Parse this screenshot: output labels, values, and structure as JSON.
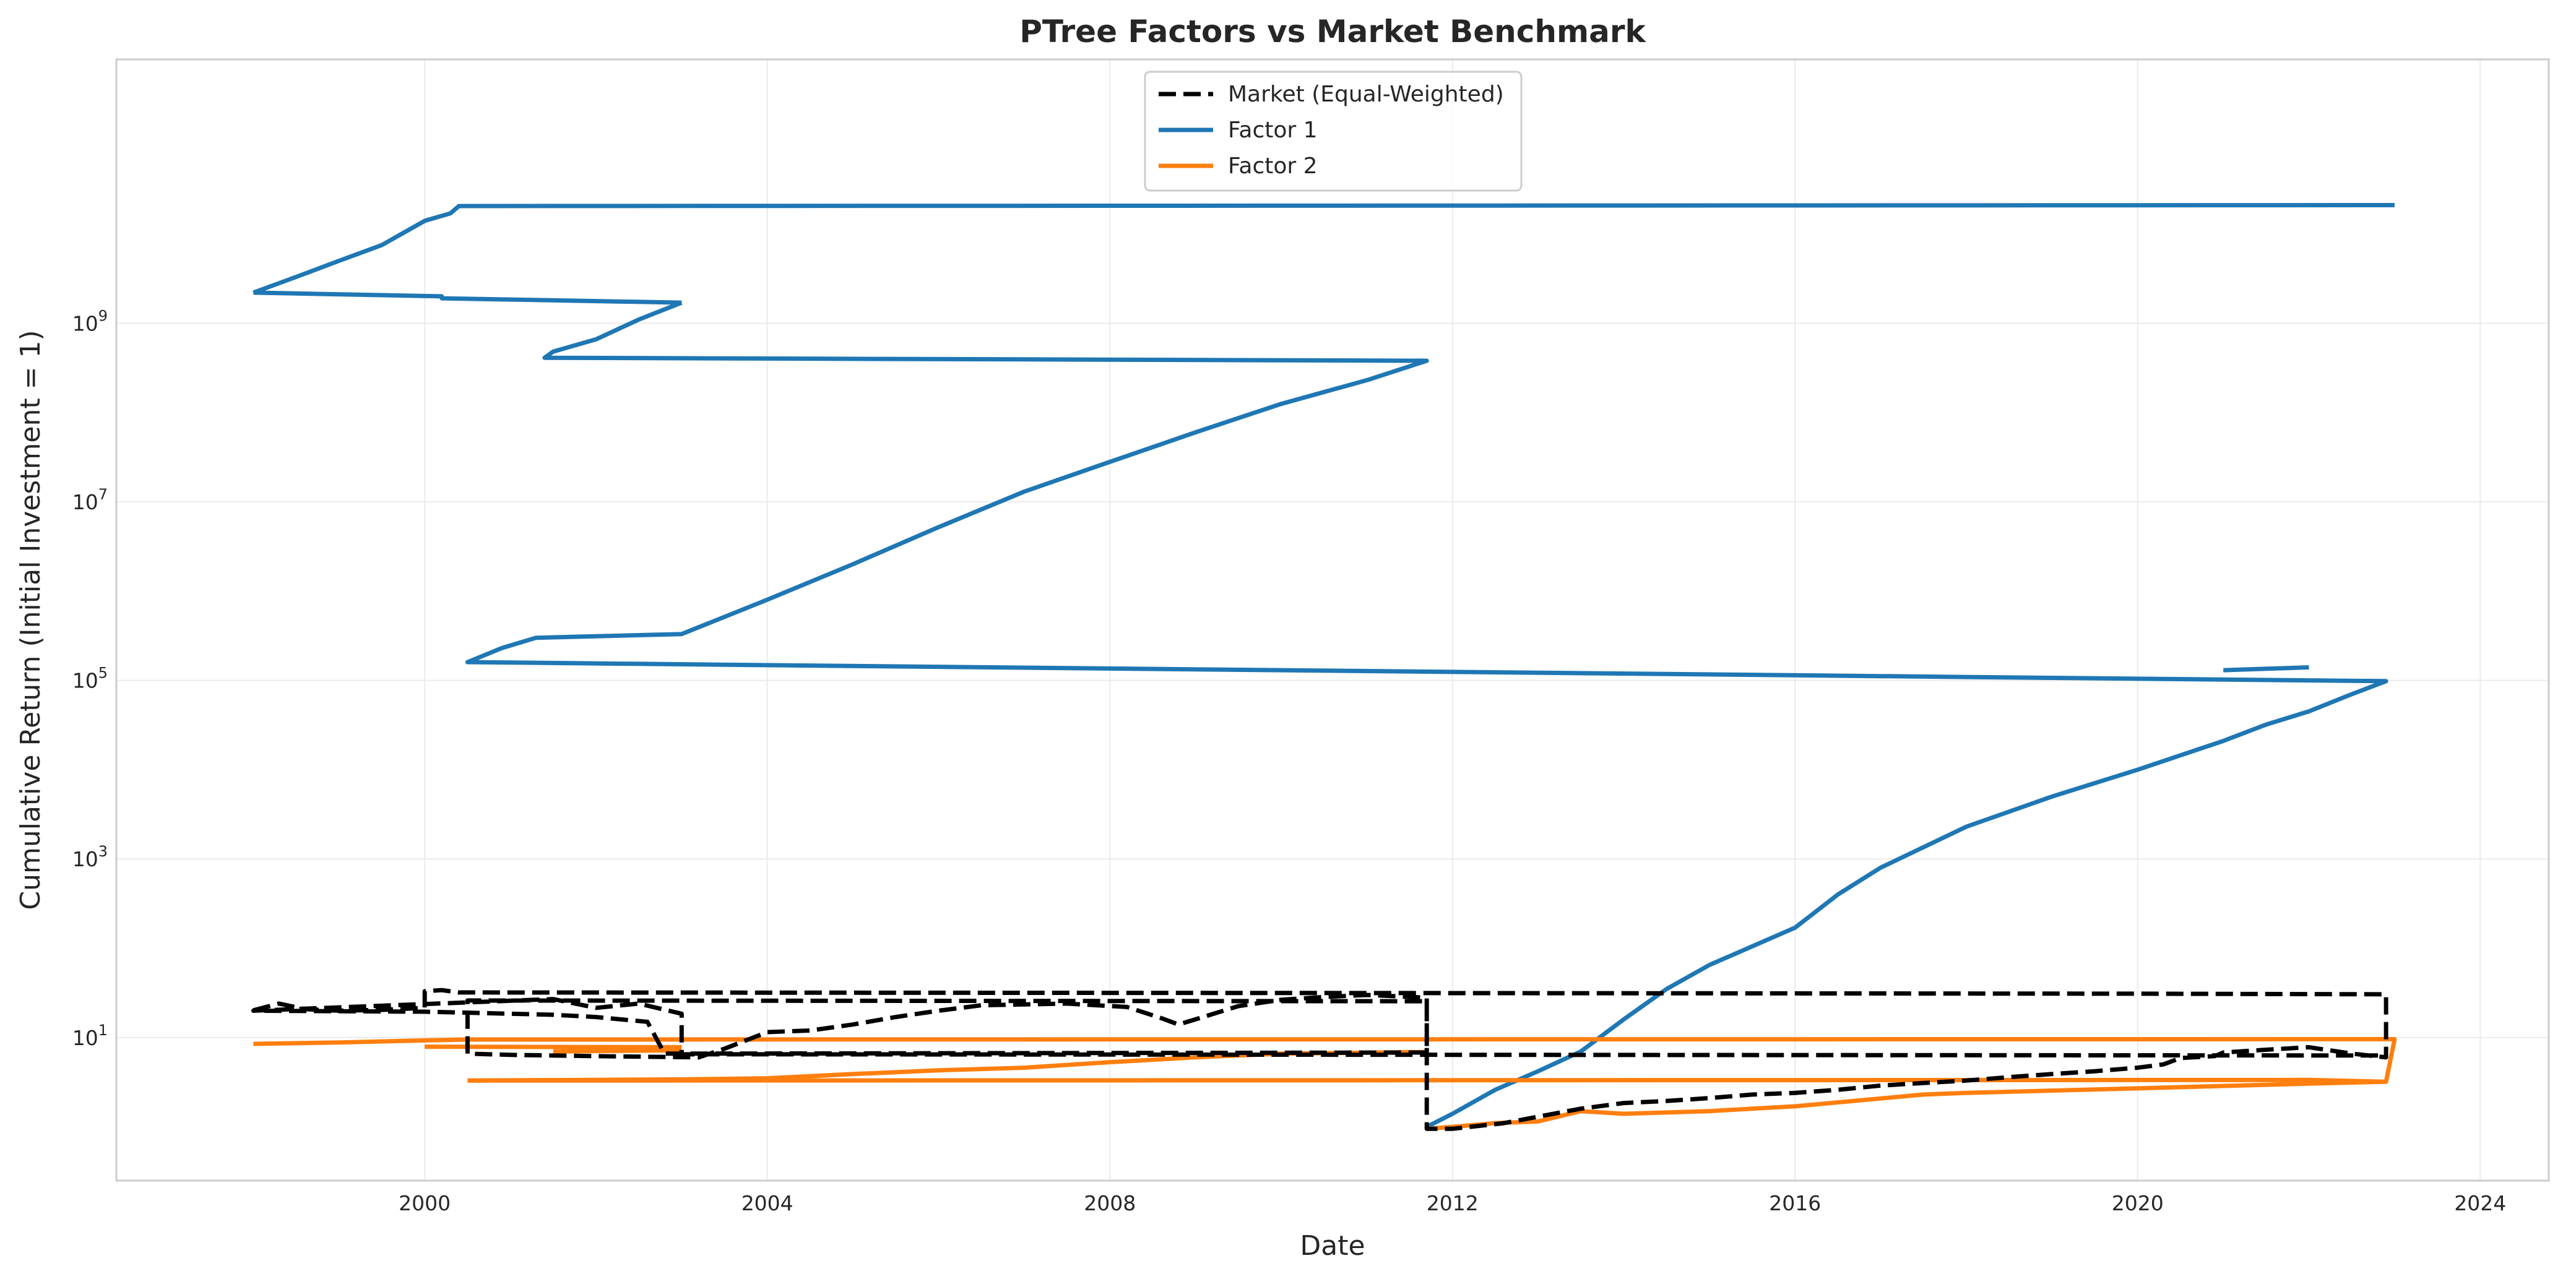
{
  "chart_data": {
    "type": "line",
    "title": "PTree Factors vs Market Benchmark",
    "xlabel": "Date",
    "ylabel": "Cumulative Return (Initial Investment = 1)",
    "yscale": "log",
    "xlim": [
      1996.4,
      2024.8
    ],
    "ylim": [
      0.25,
      900000000000.0
    ],
    "x_ticks": [
      "2000",
      "2004",
      "2008",
      "2012",
      "2016",
      "2020",
      "2024"
    ],
    "y_ticks": [
      {
        "base": "10",
        "exp": "1",
        "value": 10
      },
      {
        "base": "10",
        "exp": "3",
        "value": 1000
      },
      {
        "base": "10",
        "exp": "5",
        "value": 100000
      },
      {
        "base": "10",
        "exp": "7",
        "value": 10000000
      },
      {
        "base": "10",
        "exp": "9",
        "value": 1000000000
      }
    ],
    "grid": true,
    "legend_position": "top-center",
    "series": [
      {
        "name": "Market (Equal-Weighted)",
        "color": "#000000",
        "style": "dashed",
        "points": [
          [
            1998.0,
            20.2
          ],
          [
            1998.3,
            24.0
          ],
          [
            1998.6,
            20.8
          ],
          [
            1999.0,
            20.0
          ],
          [
            1999.5,
            20.4
          ],
          [
            2000.0,
            21.5
          ],
          [
            2000.0,
            33.0
          ],
          [
            2000.2,
            34.0
          ],
          [
            2000.4,
            32.0
          ],
          [
            2011.6,
            31.5
          ],
          [
            2020.0,
            31.0
          ],
          [
            2022.9,
            30.5
          ],
          [
            2022.9,
            6.0
          ],
          [
            2022.5,
            6.6
          ],
          [
            2022.0,
            7.8
          ],
          [
            2021.5,
            7.3
          ],
          [
            2021.0,
            6.8
          ],
          [
            2020.9,
            6.2
          ],
          [
            2020.5,
            5.9
          ],
          [
            2020.3,
            5.0
          ],
          [
            2020.0,
            4.6
          ],
          [
            2019.5,
            4.2
          ],
          [
            2019.0,
            3.9
          ],
          [
            2018.5,
            3.6
          ],
          [
            2018.0,
            3.3
          ],
          [
            2017.5,
            3.1
          ],
          [
            2017.0,
            2.9
          ],
          [
            2016.5,
            2.6
          ],
          [
            2016.0,
            2.4
          ],
          [
            2015.5,
            2.3
          ],
          [
            2015.0,
            2.1
          ],
          [
            2014.5,
            1.95
          ],
          [
            2014.0,
            1.85
          ],
          [
            2013.5,
            1.6
          ],
          [
            2013.0,
            1.3
          ],
          [
            2012.6,
            1.1
          ],
          [
            2012.0,
            0.95
          ],
          [
            2011.7,
            0.95
          ],
          [
            2011.7,
            28.0
          ],
          [
            2011.0,
            30.0
          ],
          [
            2010.5,
            28.5
          ],
          [
            2010.0,
            26.5
          ],
          [
            2009.5,
            22.5
          ],
          [
            2009.0,
            16.0
          ],
          [
            2008.8,
            14.0
          ],
          [
            2008.6,
            16.5
          ],
          [
            2008.2,
            22.0
          ],
          [
            2007.5,
            24.0
          ],
          [
            2006.5,
            23.0
          ],
          [
            2006.0,
            20.0
          ],
          [
            2005.5,
            17.0
          ],
          [
            2005.0,
            14.0
          ],
          [
            2004.5,
            12.0
          ],
          [
            2004.0,
            11.5
          ],
          [
            2003.5,
            7.5
          ],
          [
            2003.2,
            6.0
          ],
          [
            2002.0,
            6.2
          ],
          [
            2001.0,
            6.4
          ],
          [
            2000.5,
            6.6
          ],
          [
            2000.5,
            26.0
          ],
          [
            2011.7,
            25.5
          ],
          [
            2011.7,
            6.8
          ],
          [
            2002.8,
            6.6
          ],
          [
            2002.6,
            15.0
          ],
          [
            2002.0,
            17.0
          ],
          [
            2001.5,
            18.0
          ],
          [
            2001.0,
            18.5
          ],
          [
            2000.5,
            19.0
          ],
          [
            2000.0,
            19.5
          ],
          [
            1998.0,
            20.0
          ],
          [
            2001.5,
            27.0
          ],
          [
            2002.0,
            21.5
          ],
          [
            2002.5,
            24.0
          ],
          [
            2003.0,
            18.5
          ],
          [
            2003.0,
            14.0
          ],
          [
            2003.0,
            6.5
          ],
          [
            2022.9,
            6.3
          ]
        ]
      },
      {
        "name": "Factor 1",
        "color": "#1f77b4",
        "style": "solid",
        "points": [
          [
            2003.0,
            1700000000.0
          ],
          [
            2002.5,
            1100000000.0
          ],
          [
            2002.0,
            660000000.0
          ],
          [
            2001.5,
            480000000.0
          ],
          [
            2001.4,
            410000000.0
          ],
          [
            2011.7,
            380000000.0
          ],
          [
            2011.0,
            230000000.0
          ],
          [
            2010.0,
            125000000.0
          ],
          [
            2009.0,
            60000000.0
          ],
          [
            2008.0,
            28000000.0
          ],
          [
            2007.0,
            13000000.0
          ],
          [
            2006.0,
            5200000.0
          ],
          [
            2005.0,
            2000000.0
          ],
          [
            2004.0,
            800000.0
          ],
          [
            2003.0,
            330000.0
          ],
          [
            2001.3,
            300000.0
          ],
          [
            2000.9,
            230000.0
          ],
          [
            2000.5,
            160000.0
          ],
          [
            2022.9,
            98000.0
          ],
          [
            2022.5,
            70000.0
          ],
          [
            2022.0,
            45000.0
          ],
          [
            2021.5,
            32000.0
          ],
          [
            2021.0,
            21000.0
          ],
          [
            2020.0,
            10000.0
          ],
          [
            2019.0,
            5000.0
          ],
          [
            2018.0,
            2300.0
          ],
          [
            2017.0,
            800.0
          ],
          [
            2016.5,
            400.0
          ],
          [
            2016.0,
            170.0
          ],
          [
            2015.0,
            65.0
          ],
          [
            2014.5,
            35.0
          ],
          [
            2014.0,
            16.0
          ],
          [
            2013.5,
            7.0
          ],
          [
            2013.0,
            4.2
          ],
          [
            2012.5,
            2.6
          ],
          [
            2012.0,
            1.4
          ],
          [
            2011.7,
            1.0
          ]
        ],
        "extra_segments": [
          [
            [
              1998.0,
              2200000000.0
            ],
            [
              2000.2,
              2000000000.0
            ],
            [
              2000.2,
              1900000000.0
            ],
            [
              2003.0,
              1700000000.0
            ]
          ],
          [
            [
              1998.0,
              2200000000.0
            ],
            [
              1998.5,
              3300000000.0
            ],
            [
              1999.0,
              5000000000.0
            ],
            [
              1999.5,
              7500000000.0
            ],
            [
              2000.0,
              14000000000.0
            ],
            [
              2000.3,
              17000000000.0
            ],
            [
              2000.4,
              20500000000.0
            ],
            [
              2023.0,
              21000000000.0
            ]
          ],
          [
            [
              2021.0,
              130000.0
            ],
            [
              2022.0,
              140000.0
            ]
          ]
        ]
      },
      {
        "name": "Factor 2",
        "color": "#ff7f0e",
        "style": "solid",
        "points": [
          [
            1998.0,
            8.5
          ],
          [
            1999.0,
            8.8
          ],
          [
            2000.0,
            9.3
          ],
          [
            2000.5,
            9.5
          ],
          [
            2023.0,
            9.6
          ],
          [
            2022.9,
            3.2
          ],
          [
            2022.0,
            3.05
          ],
          [
            2020.0,
            2.7
          ],
          [
            2018.0,
            2.4
          ],
          [
            2017.5,
            2.3
          ],
          [
            2016.0,
            1.7
          ],
          [
            2015.5,
            1.6
          ],
          [
            2015.0,
            1.5
          ],
          [
            2014.0,
            1.4
          ],
          [
            2013.5,
            1.5
          ],
          [
            2013.0,
            1.15
          ],
          [
            2012.5,
            1.1
          ],
          [
            2012.0,
            1.0
          ],
          [
            2011.7,
            0.95
          ]
        ],
        "extra_segments": [
          [
            [
              2000.5,
              3.3
            ],
            [
              2003.0,
              3.4
            ],
            [
              2004.0,
              3.5
            ],
            [
              2005.0,
              3.9
            ],
            [
              2006.0,
              4.3
            ],
            [
              2007.0,
              4.6
            ],
            [
              2008.0,
              5.3
            ],
            [
              2009.0,
              6.0
            ],
            [
              2010.0,
              6.6
            ],
            [
              2011.7,
              6.9
            ]
          ],
          [
            [
              2000.5,
              3.3
            ],
            [
              2022.0,
              3.35
            ],
            [
              2022.9,
              3.2
            ]
          ],
          [
            [
              2000.0,
              7.9
            ],
            [
              2003.0,
              7.8
            ]
          ],
          [
            [
              2001.5,
              7.0
            ],
            [
              2003.0,
              7.2
            ]
          ]
        ]
      }
    ]
  }
}
